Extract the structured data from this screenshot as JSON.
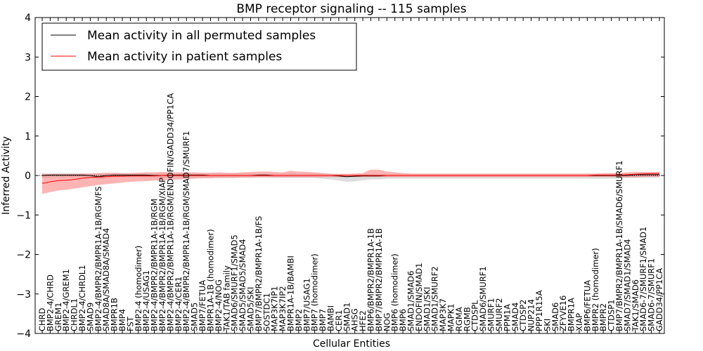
{
  "chart_data": {
    "type": "line",
    "title": "BMP receptor signaling -- 115 samples",
    "xlabel": "Cellular Entities",
    "ylabel": "Inferred Activity",
    "ylim": [
      -4,
      4
    ],
    "yticks": [
      4,
      3,
      2,
      1,
      0,
      -1,
      -2,
      -3,
      -4
    ],
    "ytick_labels": [
      "4",
      "3",
      "2",
      "1",
      "0",
      "−1",
      "−2",
      "−3",
      "−4"
    ],
    "legend": {
      "position": "top-left",
      "entries": [
        {
          "label": "Mean activity in all permuted samples",
          "color": "#000000"
        },
        {
          "label": "Mean activity in patient samples",
          "color": "#ff0000"
        }
      ]
    },
    "categories": [
      "CHRD",
      "BMP2-4/CHRD",
      "GREM1",
      "BMP2-4/GREM1",
      "CHRDL1",
      "BMP2-4/CHRDL1",
      "SMAD9",
      "BMP2-4/BMPR2/BMPR1A-1B/RGM/FS",
      "SMAD8A/SMAD8A/SMAD4",
      "BMPR1B",
      "BMP4",
      "FST",
      "BMP2-4 (homodimer)",
      "BMP2-4/USAG1",
      "BMP2-4/BMPR2/BMPR1A-1B/RGM",
      "BMP2-4/BMPR2/BMPR1A-1B/RGM/XIAP",
      "BMP2-4/BMPR2/BMPR1A-1B/RGM/ENDOFIN/GADD34/PP1CA",
      "BMP2-4/CER1",
      "BMP2-4/BMPR2/BMPR1A-1B/RGM/SMAD7/SMURF1",
      "SMAD5",
      "BMP7/FETUA",
      "BMPR1A-1B (homodimer)",
      "BMP2-4/NOG",
      "TAK1/TAB family",
      "SMAD6/SMURF1/SMAD5",
      "SMAD5/SMAD5/SMAD4",
      "SMAD5/SKI",
      "BMP7/BMPR2/BMPR1A-1B/FS",
      "SOSTDC1",
      "MAP3K7IP1",
      "MAP3K7IP2",
      "BMPR1A-1B/BAMBI",
      "BMP2",
      "BMP7/USAG1",
      "BMP7 (homodimer)",
      "BMP7",
      "BAMBI",
      "CER1",
      "SMAD1",
      "AHSG",
      "HFE2",
      "BMP6/BMPR2/BMPR1A-1B",
      "BMP7/BMPR2/BMPR1A-1B",
      "NOG",
      "BMP6 (homodimer)",
      "BMP6",
      "SMAD1/SMAD6",
      "ENDOFIN/SMAD1",
      "SMAD1/SKI",
      "SMAD1/SMURF2",
      "MAP3K7",
      "MAPK1",
      "RGMA",
      "RGMB",
      "CTDSPL",
      "SMAD6/SMURF1",
      "SMURF1",
      "SMURF2",
      "PPM1A",
      "SMAD4",
      "CTDSP2",
      "NUP214",
      "PPP1R15A",
      "SKI",
      "SMAD6",
      "ZFYVE16",
      "BMPR1A",
      "XIAP",
      "BMP6/FETUA",
      "BMPR2 (homodimer)",
      "BMPR2",
      "CTDSP1",
      "BMP7/BMPR2/BMPR1A-1B/SMAD6/SMURF1",
      "SMAD7/SMAD1/SMAD4",
      "TAK1/SMAD6",
      "SMAD6-7/SMURF1/SMAD1",
      "SMAD6-7/SMURF1",
      "GADD34/PP1CA"
    ],
    "series": [
      {
        "name": "Mean activity in all permuted samples",
        "color": "#000000",
        "band_color": "#bbbbbb",
        "values": [
          0.0,
          0.01,
          0.01,
          0.01,
          0.01,
          0.01,
          0.0,
          -0.03,
          0.0,
          0.01,
          0.01,
          0.01,
          0.01,
          0.01,
          0.0,
          0.0,
          0.01,
          0.01,
          0.01,
          0.01,
          0.01,
          0.0,
          0.0,
          0.0,
          0.0,
          0.0,
          0.0,
          0.01,
          0.01,
          0.0,
          0.0,
          0.0,
          0.0,
          0.0,
          0.0,
          0.0,
          0.0,
          -0.01,
          -0.03,
          -0.02,
          -0.01,
          -0.01,
          -0.01,
          0.0,
          0.0,
          0.0,
          0.0,
          0.0,
          0.0,
          0.0,
          0.0,
          0.0,
          0.0,
          0.0,
          0.0,
          0.0,
          0.0,
          0.0,
          0.0,
          0.0,
          0.0,
          0.0,
          0.0,
          0.0,
          0.0,
          0.0,
          0.0,
          0.0,
          0.0,
          0.0,
          0.0,
          0.0,
          0.0,
          0.0,
          0.02,
          0.02,
          0.02,
          0.02
        ],
        "band_upper": [
          0.05,
          0.05,
          0.06,
          0.06,
          0.06,
          0.05,
          0.05,
          0.05,
          0.05,
          0.05,
          0.05,
          0.05,
          0.05,
          0.05,
          0.05,
          0.05,
          0.05,
          0.05,
          0.05,
          0.05,
          0.05,
          0.05,
          0.05,
          0.05,
          0.05,
          0.05,
          0.05,
          0.05,
          0.05,
          0.05,
          0.05,
          0.05,
          0.05,
          0.05,
          0.05,
          0.05,
          0.05,
          0.04,
          0.03,
          0.03,
          0.04,
          0.04,
          0.04,
          0.04,
          0.04,
          0.04,
          0.04,
          0.04,
          0.04,
          0.04,
          0.04,
          0.04,
          0.04,
          0.04,
          0.04,
          0.04,
          0.04,
          0.04,
          0.04,
          0.04,
          0.04,
          0.04,
          0.04,
          0.04,
          0.04,
          0.04,
          0.04,
          0.04,
          0.04,
          0.04,
          0.04,
          0.04,
          0.04,
          0.05,
          0.06,
          0.06,
          0.06,
          0.06
        ],
        "band_lower": [
          -0.06,
          -0.06,
          -0.05,
          -0.05,
          -0.05,
          -0.05,
          -0.06,
          -0.1,
          -0.06,
          -0.05,
          -0.05,
          -0.05,
          -0.05,
          -0.05,
          -0.06,
          -0.06,
          -0.05,
          -0.05,
          -0.05,
          -0.05,
          -0.05,
          -0.06,
          -0.06,
          -0.06,
          -0.06,
          -0.06,
          -0.06,
          -0.05,
          -0.05,
          -0.06,
          -0.06,
          -0.06,
          -0.06,
          -0.06,
          -0.06,
          -0.08,
          -0.1,
          -0.13,
          -0.16,
          -0.15,
          -0.12,
          -0.1,
          -0.1,
          -0.08,
          -0.08,
          -0.08,
          -0.08,
          -0.08,
          -0.08,
          -0.08,
          -0.08,
          -0.08,
          -0.08,
          -0.08,
          -0.08,
          -0.08,
          -0.08,
          -0.08,
          -0.08,
          -0.08,
          -0.08,
          -0.08,
          -0.08,
          -0.08,
          -0.08,
          -0.08,
          -0.08,
          -0.08,
          -0.08,
          -0.08,
          -0.08,
          -0.08,
          -0.08,
          -0.06,
          -0.06,
          -0.06,
          -0.06,
          -0.06
        ]
      },
      {
        "name": "Mean activity in patient samples",
        "color": "#ff0000",
        "band_color": "#ff7777",
        "values": [
          -0.2,
          -0.16,
          -0.13,
          -0.12,
          -0.1,
          -0.07,
          -0.05,
          -0.04,
          -0.03,
          -0.02,
          -0.02,
          -0.01,
          -0.01,
          -0.01,
          -0.01,
          0.0,
          0.0,
          0.0,
          0.0,
          0.0,
          0.0,
          0.0,
          0.0,
          0.0,
          0.0,
          0.0,
          0.0,
          0.0,
          0.0,
          0.0,
          0.0,
          0.0,
          0.0,
          0.0,
          0.0,
          0.0,
          0.0,
          0.0,
          0.0,
          0.0,
          0.0,
          0.0,
          0.0,
          0.0,
          0.0,
          0.0,
          0.0,
          0.0,
          0.0,
          0.0,
          0.0,
          0.0,
          0.0,
          0.0,
          0.0,
          0.0,
          0.0,
          0.0,
          0.0,
          0.0,
          0.0,
          0.0,
          0.0,
          0.0,
          0.0,
          0.0,
          0.0,
          0.0,
          0.0,
          0.01,
          0.01,
          0.01,
          0.01,
          0.02,
          0.03,
          0.04,
          0.05,
          0.05
        ],
        "band_upper": [
          0.05,
          0.04,
          0.04,
          0.04,
          0.04,
          0.05,
          0.05,
          0.06,
          0.07,
          0.07,
          0.06,
          0.06,
          0.07,
          0.08,
          0.08,
          0.09,
          0.08,
          0.08,
          0.08,
          0.08,
          0.07,
          0.07,
          0.08,
          0.07,
          0.07,
          0.08,
          0.09,
          0.1,
          0.1,
          0.09,
          0.08,
          0.12,
          0.1,
          0.09,
          0.08,
          0.06,
          0.04,
          0.04,
          0.04,
          0.05,
          0.06,
          0.15,
          0.15,
          0.1,
          0.08,
          0.06,
          0.05,
          0.05,
          0.05,
          0.05,
          0.05,
          0.05,
          0.05,
          0.05,
          0.05,
          0.05,
          0.05,
          0.05,
          0.05,
          0.05,
          0.05,
          0.05,
          0.05,
          0.05,
          0.05,
          0.05,
          0.05,
          0.05,
          0.05,
          0.05,
          0.06,
          0.06,
          0.07,
          0.08,
          0.09,
          0.09,
          0.09,
          0.09
        ],
        "band_lower": [
          -0.47,
          -0.42,
          -0.38,
          -0.36,
          -0.33,
          -0.3,
          -0.27,
          -0.24,
          -0.22,
          -0.2,
          -0.18,
          -0.16,
          -0.15,
          -0.14,
          -0.13,
          -0.12,
          -0.11,
          -0.1,
          -0.09,
          -0.08,
          -0.07,
          -0.07,
          -0.06,
          -0.06,
          -0.06,
          -0.05,
          -0.05,
          -0.05,
          -0.05,
          -0.05,
          -0.05,
          -0.05,
          -0.05,
          -0.05,
          -0.05,
          -0.05,
          -0.04,
          -0.04,
          -0.04,
          -0.04,
          -0.04,
          -0.04,
          -0.04,
          -0.04,
          -0.04,
          -0.04,
          -0.04,
          -0.04,
          -0.04,
          -0.04,
          -0.04,
          -0.04,
          -0.04,
          -0.04,
          -0.04,
          -0.04,
          -0.04,
          -0.04,
          -0.04,
          -0.04,
          -0.04,
          -0.04,
          -0.04,
          -0.04,
          -0.04,
          -0.04,
          -0.04,
          -0.04,
          -0.04,
          -0.04,
          -0.04,
          -0.04,
          -0.05,
          -0.05,
          -0.05,
          -0.04,
          -0.03,
          -0.03
        ]
      }
    ]
  }
}
